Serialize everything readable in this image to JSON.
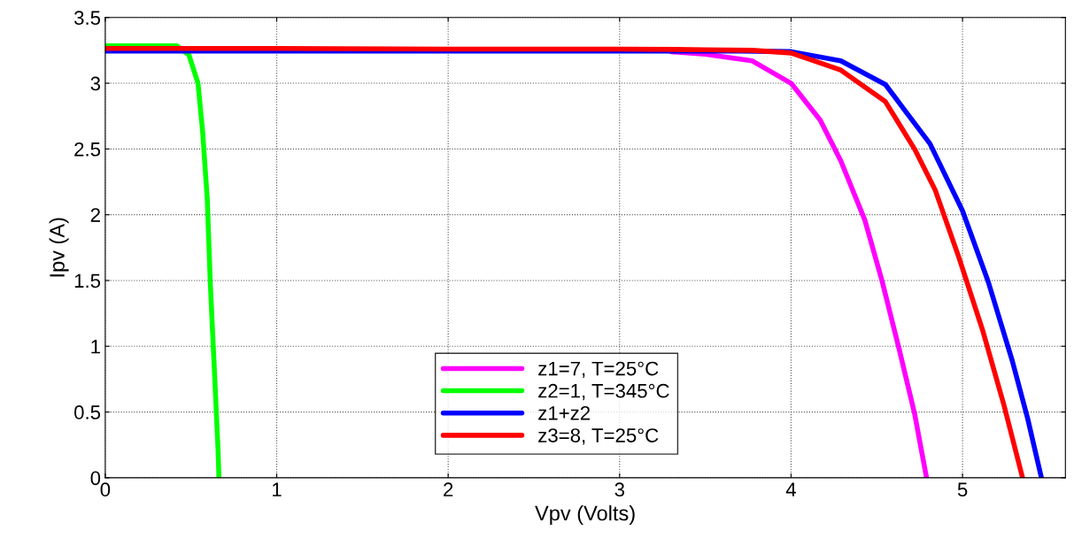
{
  "chart_data": {
    "type": "line",
    "xlabel": "Vpv (Volts)",
    "ylabel": "Ipv (A)",
    "xlim": [
      0,
      5.6
    ],
    "ylim": [
      0,
      3.5
    ],
    "xticks": [
      0,
      1,
      2,
      3,
      4,
      5
    ],
    "yticks": [
      0,
      0.5,
      1,
      1.5,
      2,
      2.5,
      3,
      3.5
    ],
    "grid": true,
    "legend": "bottom",
    "line_style": "solid",
    "marker": "none",
    "series": [
      {
        "name": "z1=7, T=25°C",
        "color": "#ff00ff",
        "x": [
          3.3,
          3.5,
          3.774,
          4.0,
          4.17,
          4.29,
          4.43,
          4.53,
          4.63,
          4.72,
          4.79
        ],
        "values": [
          3.24,
          3.22,
          3.17,
          3.0,
          2.72,
          2.41,
          1.96,
          1.5,
          0.98,
          0.49,
          0
        ]
      },
      {
        "name": "z2=1, T=345°C",
        "color": "#00ff00",
        "x": [
          0,
          0.417,
          0.488,
          0.541,
          0.568,
          0.595,
          0.613,
          0.634,
          0.658,
          0.663
        ],
        "values": [
          3.284,
          3.284,
          3.215,
          3.0,
          2.63,
          2.12,
          1.47,
          0.89,
          0.21,
          0
        ]
      },
      {
        "name": "z1+z2",
        "color": "#0000ff",
        "x": [
          0,
          1,
          2,
          3,
          3.7,
          4.0,
          4.29,
          4.55,
          4.81,
          5.0,
          5.15,
          5.29,
          5.38,
          5.46
        ],
        "values": [
          3.245,
          3.245,
          3.245,
          3.245,
          3.245,
          3.24,
          3.17,
          2.99,
          2.54,
          2.03,
          1.49,
          0.89,
          0.45,
          0
        ]
      },
      {
        "name": "z3=8, T=25°C",
        "color": "#ff0000",
        "x": [
          0,
          1,
          2,
          3,
          3.5,
          3.774,
          4.0,
          4.29,
          4.55,
          4.72,
          4.84,
          4.98,
          5.12,
          5.24,
          5.35
        ],
        "values": [
          3.265,
          3.265,
          3.26,
          3.26,
          3.255,
          3.25,
          3.23,
          3.1,
          2.86,
          2.5,
          2.19,
          1.67,
          1.11,
          0.56,
          0
        ]
      }
    ]
  }
}
